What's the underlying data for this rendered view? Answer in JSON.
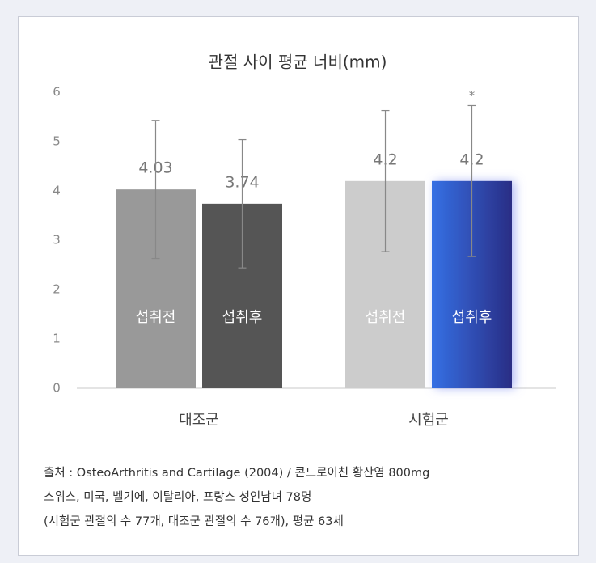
{
  "chart_data": {
    "type": "bar",
    "title": "관절 사이 평균 너비(mm)",
    "categories": [
      "대조군",
      "시험군"
    ],
    "series": [
      {
        "name": "섭취전",
        "colors": [
          "#999999",
          "#cccccc"
        ],
        "values": [
          4.03,
          4.2
        ],
        "errors": [
          1.4,
          1.43
        ]
      },
      {
        "name": "섭취후",
        "colors": [
          "#555555",
          "#2f63dc"
        ],
        "values": [
          3.74,
          4.2
        ],
        "errors": [
          1.3,
          1.53
        ]
      }
    ],
    "annotation": "*",
    "ylim": [
      0,
      6
    ],
    "yticks": [
      0,
      1,
      2,
      3,
      4,
      5,
      6
    ]
  },
  "footnotes": [
    "출처 : OsteoArthritis and Cartilage (2004) / 콘드로이친 황산염 800mg",
    "스위스, 미국, 벨기에, 이탈리아, 프랑스 성인남녀 78명",
    "(시험군 관절의 수 77개, 대조군 관절의 수 76개), 평균 63세"
  ]
}
